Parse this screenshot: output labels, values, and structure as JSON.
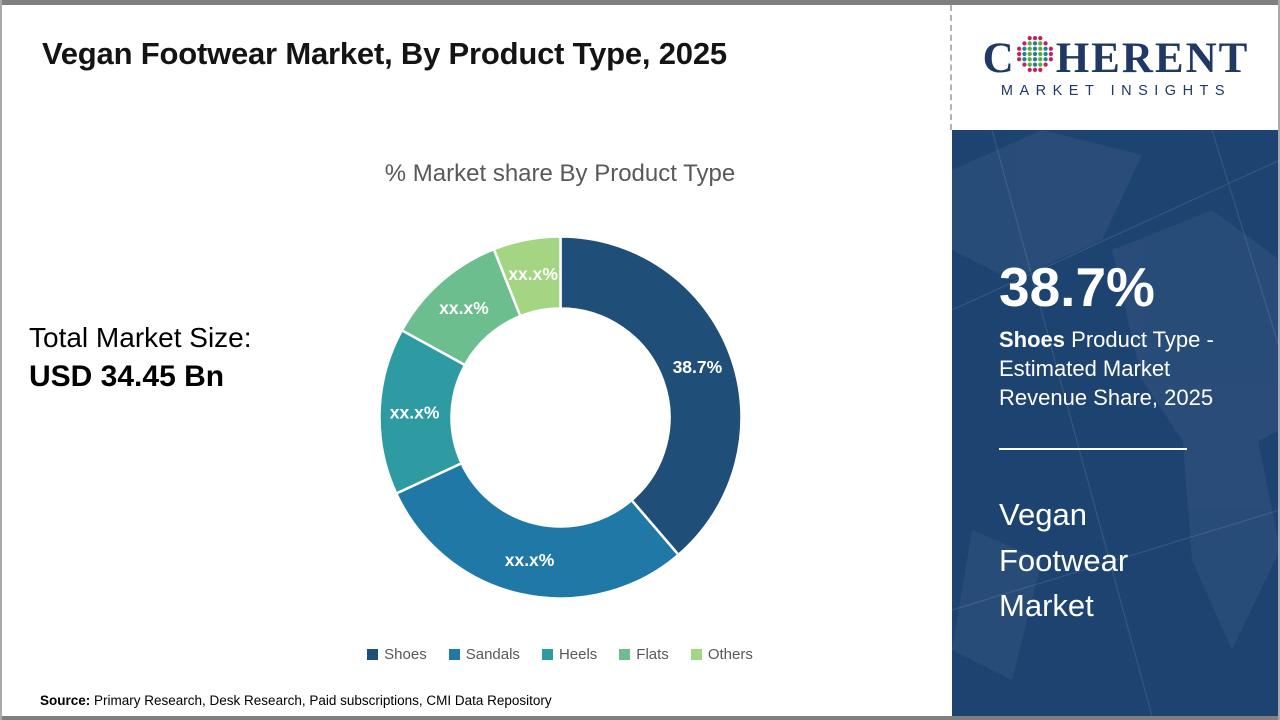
{
  "page": {
    "title": "Vegan Footwear Market, By Product Type, 2025",
    "source_label": "Source:",
    "source_text": " Primary Research, Desk Research, Paid subscriptions, CMI Data Repository"
  },
  "logo": {
    "brand_first_letter": "C",
    "brand_rest": "HERENT",
    "tagline": "MARKET INSIGHTS",
    "brand_color": "#1F3864"
  },
  "left_stats": {
    "label": "Total Market Size:",
    "value": "USD 34.45 Bn"
  },
  "chart_data": {
    "type": "pie",
    "variant": "donut",
    "title": "% Market share By Product Type",
    "categories": [
      "Shoes",
      "Sandals",
      "Heels",
      "Flats",
      "Others"
    ],
    "values": [
      38.7,
      29.4,
      14.9,
      11.0,
      6.0
    ],
    "slice_labels": [
      "38.7%",
      "xx.x%",
      "xx.x%",
      "xx.x%",
      "xx.x%"
    ],
    "colors": [
      "#1F4E79",
      "#2078A6",
      "#2E9AA1",
      "#6CBE8E",
      "#A3D583"
    ],
    "legend_position": "bottom",
    "start_angle_deg": 0,
    "direction": "clockwise"
  },
  "side_panel": {
    "headline_value": "38.7%",
    "description_bold": "Shoes",
    "description_rest": " Product Type - Estimated Market Revenue Share, 2025",
    "market_name_lines": [
      "Vegan",
      "Footwear",
      "Market"
    ],
    "background_color": "#1D4371"
  }
}
